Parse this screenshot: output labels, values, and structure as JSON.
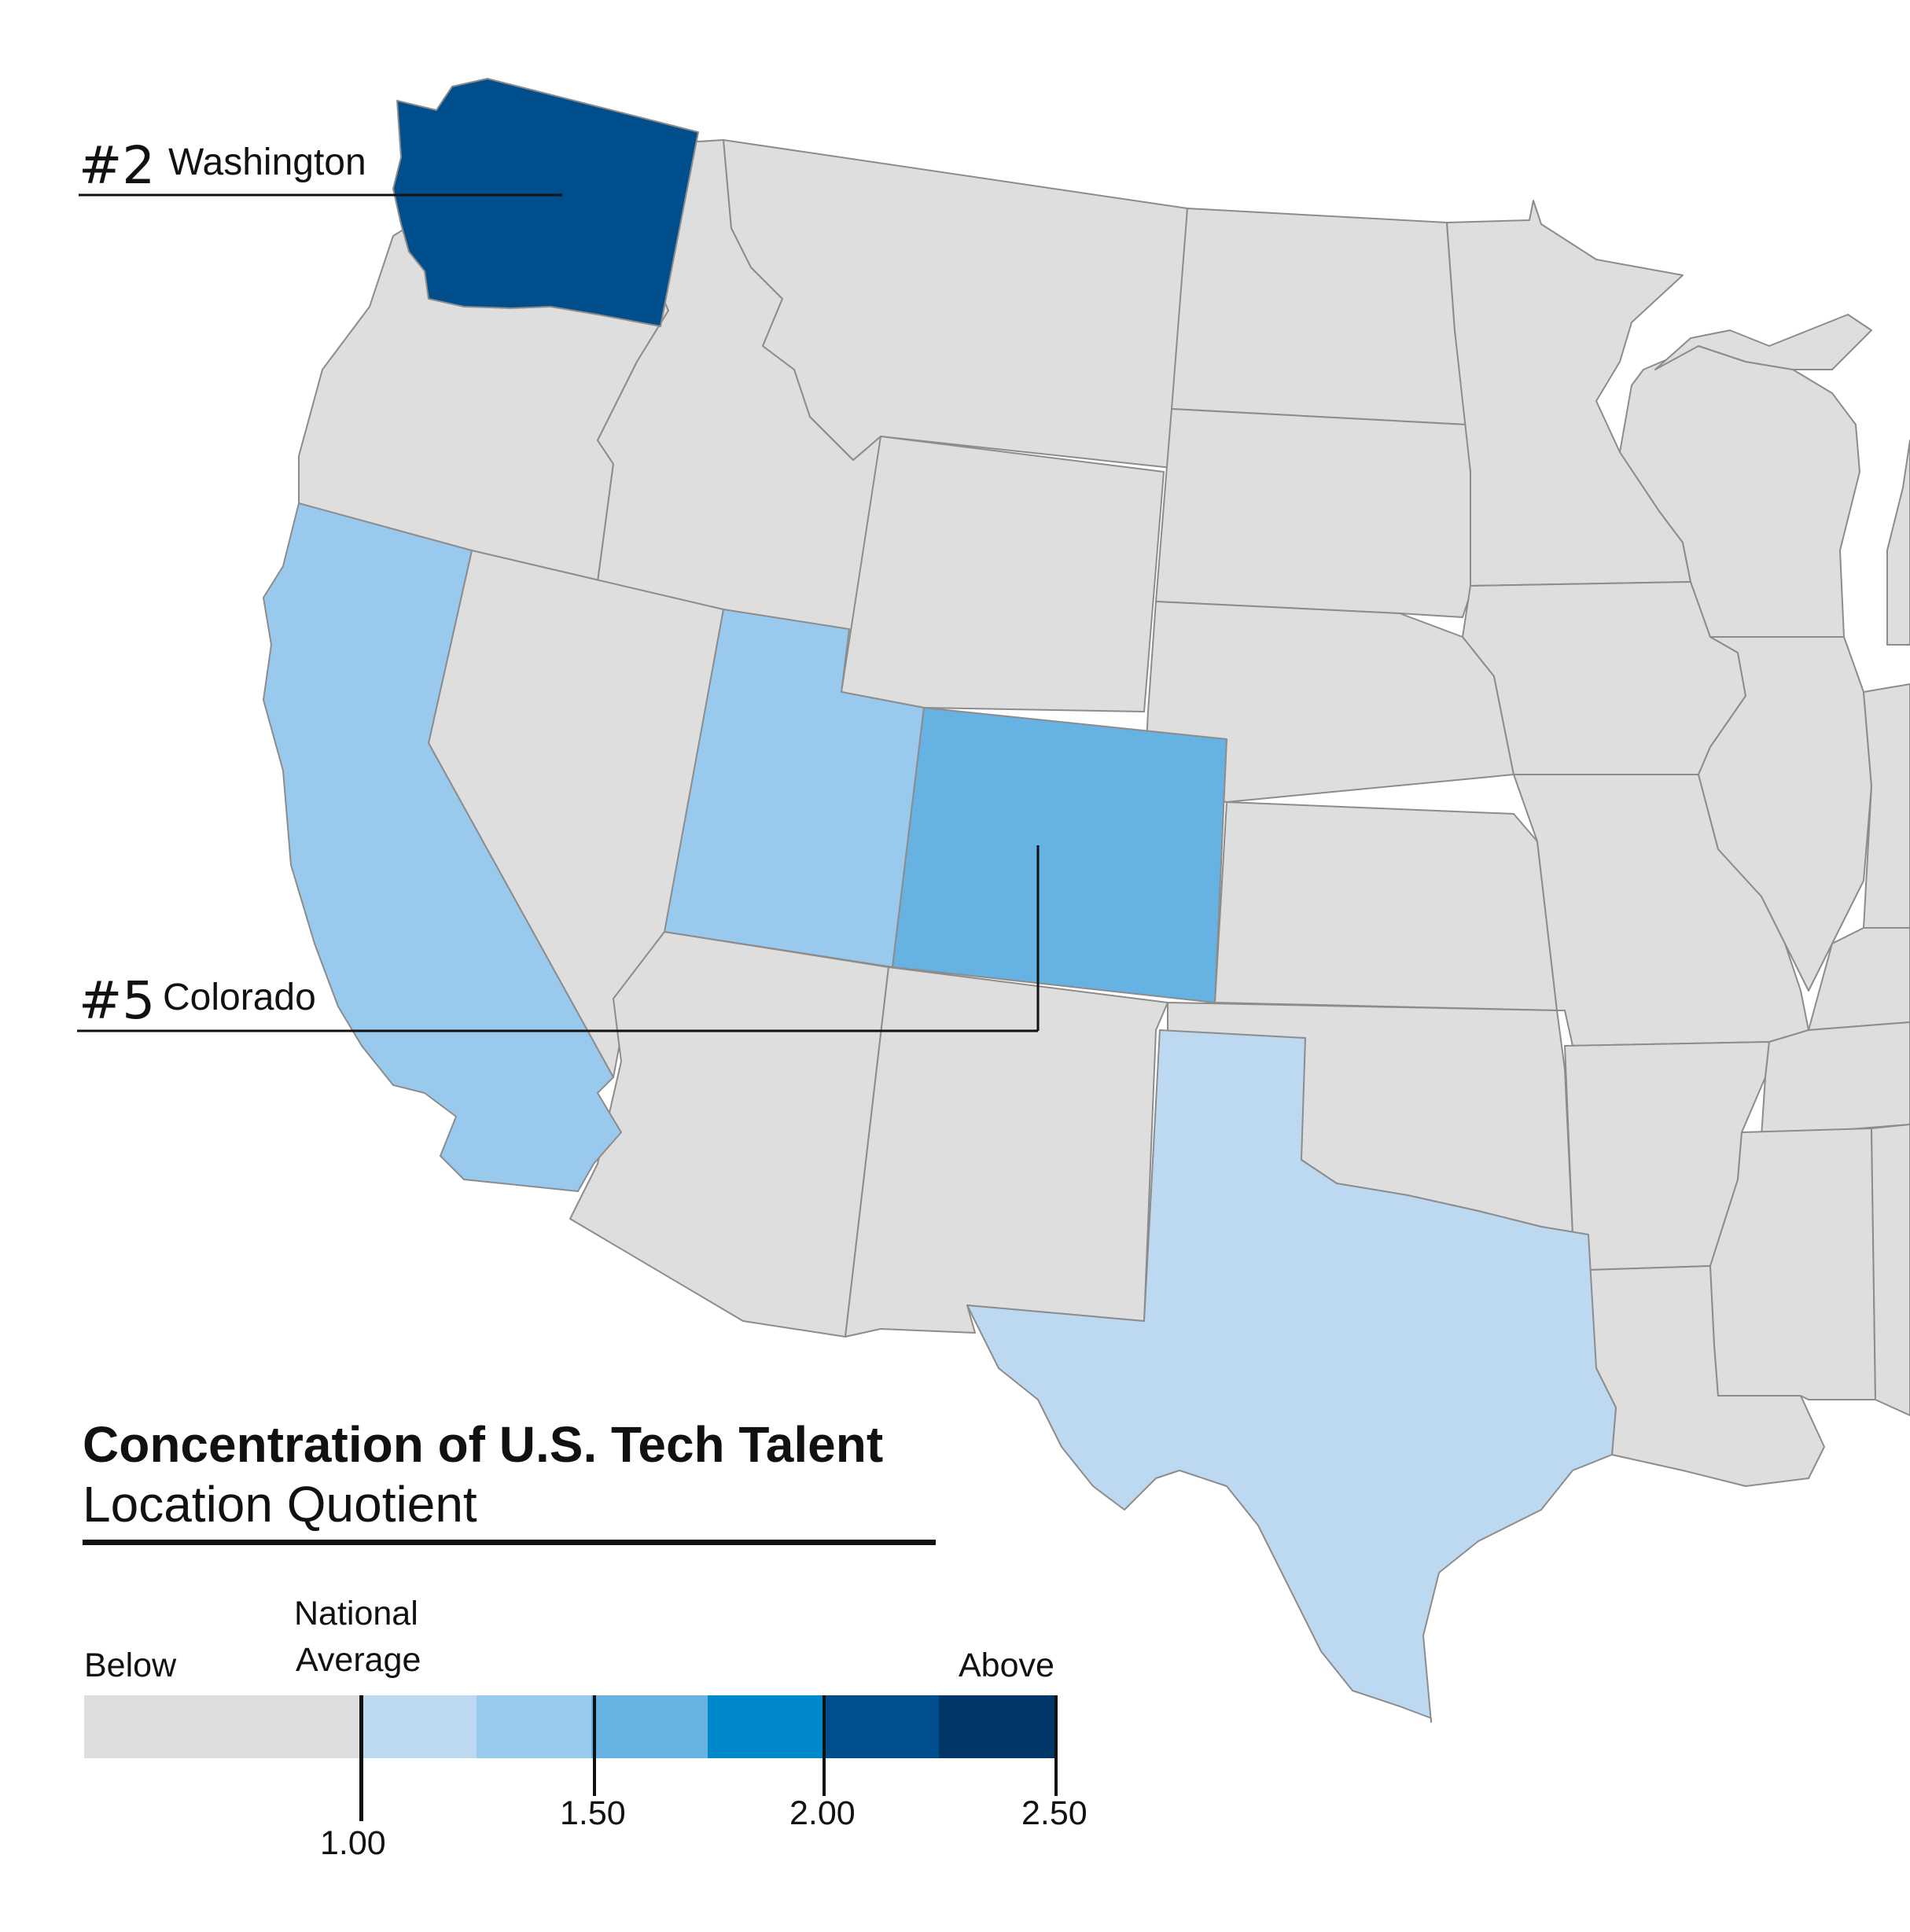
{
  "title": "Concentration of U.S. Tech Talent",
  "subtitle": "Location Quotient",
  "callouts": [
    {
      "rank": "#2",
      "state": "Washington"
    },
    {
      "rank": "#5",
      "state": "Colorado"
    }
  ],
  "legend": {
    "below_label": "Below",
    "above_label": "Above",
    "national_average_label_line1": "National",
    "national_average_label_line2": "Average",
    "ticks": [
      "1.00",
      "1.50",
      "2.00",
      "2.50"
    ],
    "colors": {
      "below": "#dedede",
      "1.00-1.25": "#bdd9f1",
      "1.25-1.50": "#99c9ec",
      "1.50-1.75": "#66b2e2",
      "1.75-2.00": "#0088cc",
      "2.00-2.25": "#004f8c",
      "2.25-2.50": "#003766"
    }
  },
  "map_data": {
    "highlighted_states": [
      {
        "state": "Washington",
        "lq_bin": "2.00-2.25",
        "color": "#004f8c"
      },
      {
        "state": "Colorado",
        "lq_bin": "1.50-1.75",
        "color": "#66b2e2"
      },
      {
        "state": "California",
        "lq_bin": "1.25-1.50",
        "color": "#99c9ec"
      },
      {
        "state": "Utah",
        "lq_bin": "1.25-1.50",
        "color": "#99c9ec"
      },
      {
        "state": "Texas",
        "lq_bin": "1.00-1.25",
        "color": "#bdd9f1"
      }
    ],
    "other_states_color": "#dedede"
  }
}
